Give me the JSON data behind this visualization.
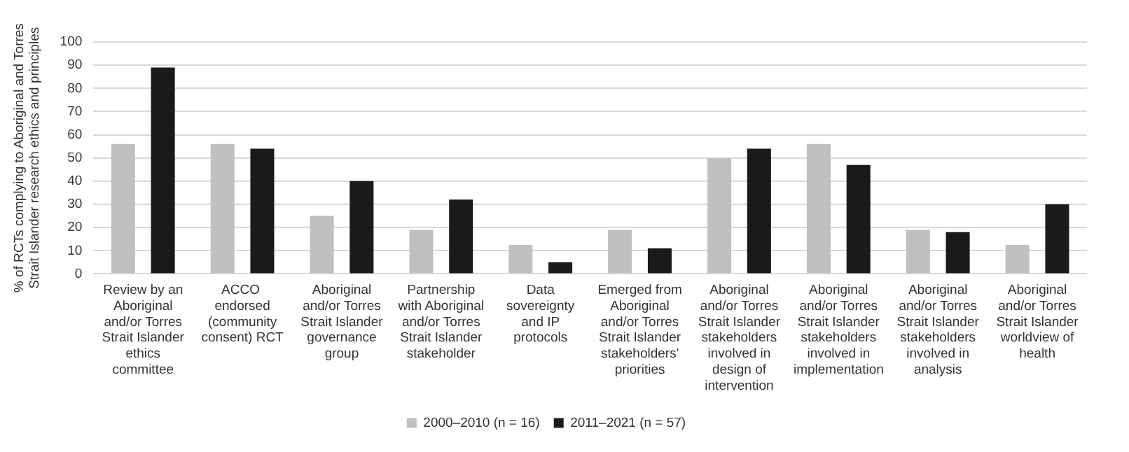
{
  "chart_data": {
    "type": "bar",
    "ylabel": "% of RCTs complying to Aboriginal and Torres Strait Islander research ethics and principles",
    "categories": [
      "Review by an Aboriginal and/or Torres Strait Islander ethics committee",
      "ACCO  endorsed (community consent) RCT",
      "Aboriginal and/or Torres Strait Islander governance group",
      "Partnership with Aboriginal and/or Torres Strait Islander stakeholder",
      "Data sovereignty and IP protocols",
      "Emerged from Aboriginal and/or Torres Strait Islander stakeholders' priorities",
      "Aboriginal and/or Torres Strait Islander stakeholders involved in design of intervention",
      "Aboriginal and/or Torres Strait Islander stakeholders involved in implementation",
      "Aboriginal and/or Torres Strait Islander stakeholders involved in analysis",
      "Aboriginal and/or Torres Strait Islander worldview of health"
    ],
    "series": [
      {
        "name": "2000–2010 (n = 16)",
        "color": "#c0c0c0",
        "values": [
          56,
          56,
          25,
          19,
          12.5,
          19,
          50,
          56,
          19,
          12.5
        ]
      },
      {
        "name": "2011–2021 (n = 57)",
        "color": "#1a1a1a",
        "values": [
          89,
          54,
          40,
          32,
          5,
          11,
          54,
          47,
          18,
          30
        ]
      }
    ],
    "ylim": [
      0,
      100
    ],
    "yticks": [
      0,
      10,
      20,
      30,
      40,
      50,
      60,
      70,
      80,
      90,
      100
    ],
    "grid": "y",
    "legend": "bottom"
  }
}
